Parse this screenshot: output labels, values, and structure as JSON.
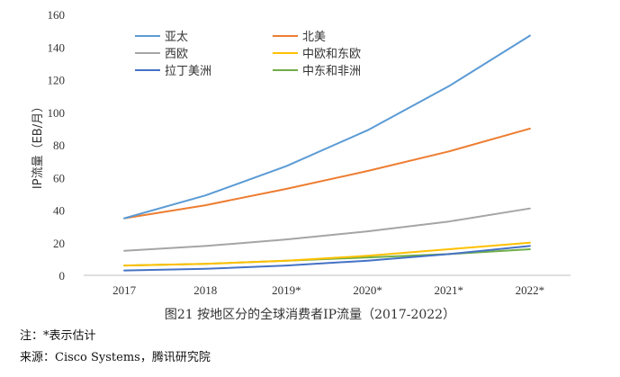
{
  "chart_data": {
    "type": "line",
    "title": "",
    "xlabel": "",
    "ylabel": "IP流量（EB/月）",
    "ylim": [
      0,
      160
    ],
    "yticks": [
      0,
      20,
      40,
      60,
      80,
      100,
      120,
      140,
      160
    ],
    "categories": [
      "2017",
      "2018",
      "2019*",
      "2020*",
      "2021*",
      "2022*"
    ],
    "grid": false,
    "legend_placement": "top-left",
    "series": [
      {
        "name": "亚太",
        "color": "#5B9BD5",
        "values": [
          35,
          49,
          67,
          89,
          116,
          147
        ]
      },
      {
        "name": "北美",
        "color": "#ED7D31",
        "values": [
          35,
          43,
          53,
          64,
          76,
          90
        ]
      },
      {
        "name": "西欧",
        "color": "#A5A5A5",
        "values": [
          15,
          18,
          22,
          27,
          33,
          41
        ]
      },
      {
        "name": "中欧和东欧",
        "color": "#FFC000",
        "values": [
          6,
          7,
          9,
          12,
          16,
          20
        ]
      },
      {
        "name": "拉丁美洲",
        "color": "#4472C4",
        "values": [
          3,
          4,
          6,
          9,
          13,
          18
        ]
      },
      {
        "name": "中东和非洲",
        "color": "#70AD47",
        "values": [
          6,
          7,
          9,
          11,
          13,
          16
        ]
      }
    ]
  },
  "caption": "图21  按地区分的全球消费者IP流量（2017-2022）",
  "notes": [
    "注：*表示估计",
    "来源：Cisco Systems，腾讯研究院"
  ]
}
